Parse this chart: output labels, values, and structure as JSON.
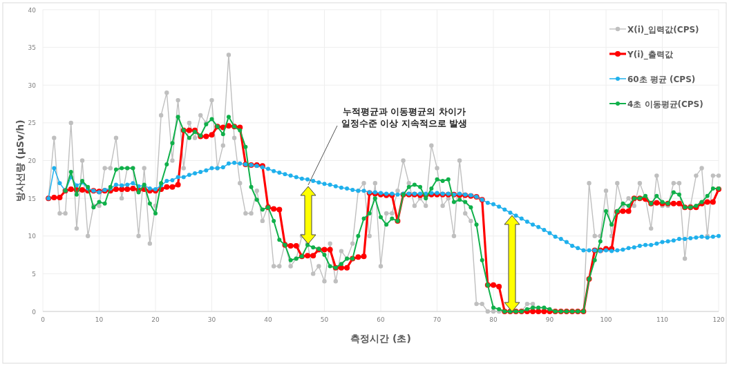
{
  "chart_data": {
    "type": "line",
    "xlabel": "측정시간 (초)",
    "ylabel": "방사선량 (μSv/h)",
    "annotations": [
      "누적평균과 이동평균의 차이가\n일정수준 이상 지속적으로 발생"
    ],
    "x": [
      1,
      2,
      3,
      4,
      5,
      6,
      7,
      8,
      9,
      10,
      11,
      12,
      13,
      14,
      15,
      16,
      17,
      18,
      19,
      20,
      21,
      22,
      23,
      24,
      25,
      26,
      27,
      28,
      29,
      30,
      31,
      32,
      33,
      34,
      35,
      36,
      37,
      38,
      39,
      40,
      41,
      42,
      43,
      44,
      45,
      46,
      47,
      48,
      49,
      50,
      51,
      52,
      53,
      54,
      55,
      56,
      57,
      58,
      59,
      60,
      61,
      62,
      63,
      64,
      65,
      66,
      67,
      68,
      69,
      70,
      71,
      72,
      73,
      74,
      75,
      76,
      77,
      78,
      79,
      80,
      81,
      82,
      83,
      84,
      85,
      86,
      87,
      88,
      89,
      90,
      91,
      92,
      93,
      94,
      95,
      96,
      97,
      98,
      99,
      100,
      101,
      102,
      103,
      104,
      105,
      106,
      107,
      108,
      109,
      110,
      111,
      112,
      113,
      114,
      115,
      116,
      117,
      118,
      119,
      120
    ],
    "series": [
      {
        "name": "X(i)_입력값(CPS)",
        "color": "#bfbfbf",
        "values": [
          15,
          23,
          13,
          13,
          25,
          11,
          20,
          10,
          14,
          14,
          19,
          19,
          23,
          15,
          19,
          19,
          10,
          19,
          9,
          14,
          26,
          29,
          20,
          28,
          19,
          25,
          23,
          26,
          25,
          28,
          19,
          22,
          34,
          23,
          17,
          13,
          13,
          16,
          12,
          14,
          6,
          6,
          9,
          6,
          7,
          10,
          9,
          5,
          6,
          4,
          9,
          4,
          8,
          7,
          9,
          16,
          17,
          10,
          17,
          6,
          13,
          13,
          16,
          20,
          17,
          14,
          15,
          14,
          22,
          19,
          14,
          15,
          10,
          20,
          13,
          12,
          1,
          1,
          0,
          0,
          0,
          0,
          0,
          0,
          0,
          1,
          1,
          0,
          0,
          0,
          0,
          0,
          0,
          0,
          0,
          0,
          17,
          10,
          10,
          16,
          10,
          17,
          14,
          15,
          14,
          17,
          15,
          11,
          18,
          14,
          14,
          17,
          17,
          7,
          14,
          18,
          19,
          10,
          18,
          18
        ]
      },
      {
        "name": "Y(i)_출력값",
        "color": "#ff0000",
        "values": [
          15,
          15.1,
          15.1,
          16,
          16.2,
          16.1,
          16.1,
          16,
          16,
          15.9,
          16,
          16,
          16.2,
          16.2,
          16.2,
          16.3,
          16.1,
          16.2,
          16,
          16,
          16.2,
          16.5,
          16.5,
          16.8,
          24,
          24,
          24,
          23.2,
          23.2,
          23.4,
          24.5,
          24.4,
          24.6,
          24.5,
          24.4,
          19.5,
          19.4,
          19.4,
          19.3,
          13.8,
          13.6,
          13.5,
          8.8,
          8.7,
          8.7,
          7.3,
          7.4,
          7.4,
          8.2,
          8.2,
          8.2,
          5.8,
          5.8,
          5.8,
          7,
          7.2,
          7.3,
          15.7,
          15.6,
          15.5,
          15.4,
          15.4,
          12,
          15.5,
          15.5,
          15.5,
          15.4,
          15.4,
          15.5,
          15.5,
          15.5,
          15.5,
          15.5,
          15.4,
          15.4,
          15.3,
          15.2,
          14.8,
          3.5,
          3.5,
          3.3,
          0,
          0,
          0,
          0,
          0,
          0,
          0,
          0,
          0,
          0,
          0,
          0,
          0,
          0,
          0,
          4.3,
          8.1,
          8.1,
          8.3,
          8.3,
          13.2,
          13.3,
          13.3,
          15,
          15,
          14.9,
          14.3,
          14.4,
          14.3,
          14.3,
          14.3,
          14.3,
          13.8,
          13.8,
          13.8,
          14.3,
          14.5,
          14.5,
          16.2
        ]
      },
      {
        "name": "60초 평균 (CPS)",
        "color": "#1fb0ec",
        "values": [
          15,
          19,
          17,
          16,
          17.8,
          16.7,
          17.1,
          16.3,
          16,
          15.8,
          16.1,
          16.3,
          16.8,
          16.7,
          16.8,
          17,
          16.6,
          16.7,
          16.3,
          16.2,
          16.7,
          17.3,
          17.4,
          17.8,
          17.8,
          18.1,
          18.3,
          18.5,
          18.7,
          19,
          19,
          19.1,
          19.6,
          19.7,
          19.6,
          19.5,
          19.4,
          19.3,
          19.1,
          18.9,
          18.6,
          18.4,
          18.2,
          18,
          17.8,
          17.6,
          17.5,
          17.3,
          17.1,
          16.9,
          16.8,
          16.6,
          16.4,
          16.3,
          16.1,
          16,
          16,
          15.8,
          15.8,
          15.7,
          15.6,
          15.6,
          15.5,
          15.6,
          15.6,
          15.6,
          15.6,
          15.6,
          15.7,
          15.7,
          15.6,
          15.6,
          15.5,
          15.6,
          15.5,
          15.4,
          15.2,
          14.8,
          14.4,
          14.2,
          13.9,
          13.5,
          13.1,
          12.7,
          12.3,
          11.9,
          11.5,
          11.2,
          10.8,
          10.4,
          9.9,
          9.6,
          9.2,
          8.7,
          8.4,
          8.1,
          8.1,
          8.1,
          8,
          8.1,
          8,
          8.1,
          8.2,
          8.4,
          8.5,
          8.7,
          8.8,
          8.8,
          9,
          9.2,
          9.3,
          9.4,
          9.6,
          9.6,
          9.7,
          9.8,
          9.9,
          9.8,
          9.9,
          10
        ]
      },
      {
        "name": "4초 이동평균(CPS)",
        "color": "#10b04a",
        "values": [
          null,
          null,
          null,
          16,
          18.5,
          15.5,
          17.3,
          16.5,
          13.8,
          14.5,
          14.3,
          16.5,
          18.8,
          19,
          19,
          19,
          15.8,
          16.8,
          14.3,
          13,
          17,
          19.5,
          22.3,
          25.8,
          24,
          23,
          23.8,
          23.3,
          24.8,
          25.5,
          24.5,
          23.5,
          25.8,
          24.5,
          24,
          21.8,
          16.5,
          14.8,
          13.5,
          13.8,
          12,
          9.5,
          8.8,
          6.8,
          7,
          7.3,
          8.8,
          8.5,
          8.3,
          7.5,
          6,
          5.8,
          6.3,
          7,
          7,
          10,
          12.3,
          13,
          15,
          12.5,
          11.5,
          12.3,
          12,
          15.5,
          16.5,
          16.8,
          16.5,
          15,
          16.3,
          17.5,
          17.3,
          17.5,
          14.5,
          14.8,
          14.5,
          13.8,
          11.5,
          6.8,
          3.5,
          0.5,
          0.3,
          0,
          0,
          0,
          0,
          0.3,
          0.5,
          0.5,
          0.5,
          0.3,
          0,
          0,
          0,
          0,
          0,
          0,
          4.3,
          6.8,
          9.3,
          13.3,
          11.5,
          13.3,
          14.3,
          14,
          15,
          15,
          15.3,
          14.3,
          15.3,
          14.5,
          14.3,
          15.8,
          15.5,
          13.8,
          13.8,
          14,
          14.5,
          15.3,
          16.3,
          16.3
        ]
      }
    ],
    "xlim": [
      0,
      120
    ],
    "xticks": [
      0,
      10,
      20,
      30,
      40,
      50,
      60,
      70,
      80,
      90,
      100,
      110,
      120
    ],
    "ylim": [
      0,
      40
    ],
    "yticks": [
      0,
      5,
      10,
      15,
      20,
      25,
      30,
      35,
      40
    ],
    "grid": true,
    "legend": "top right",
    "marker": "circle",
    "line_style": "solid"
  }
}
